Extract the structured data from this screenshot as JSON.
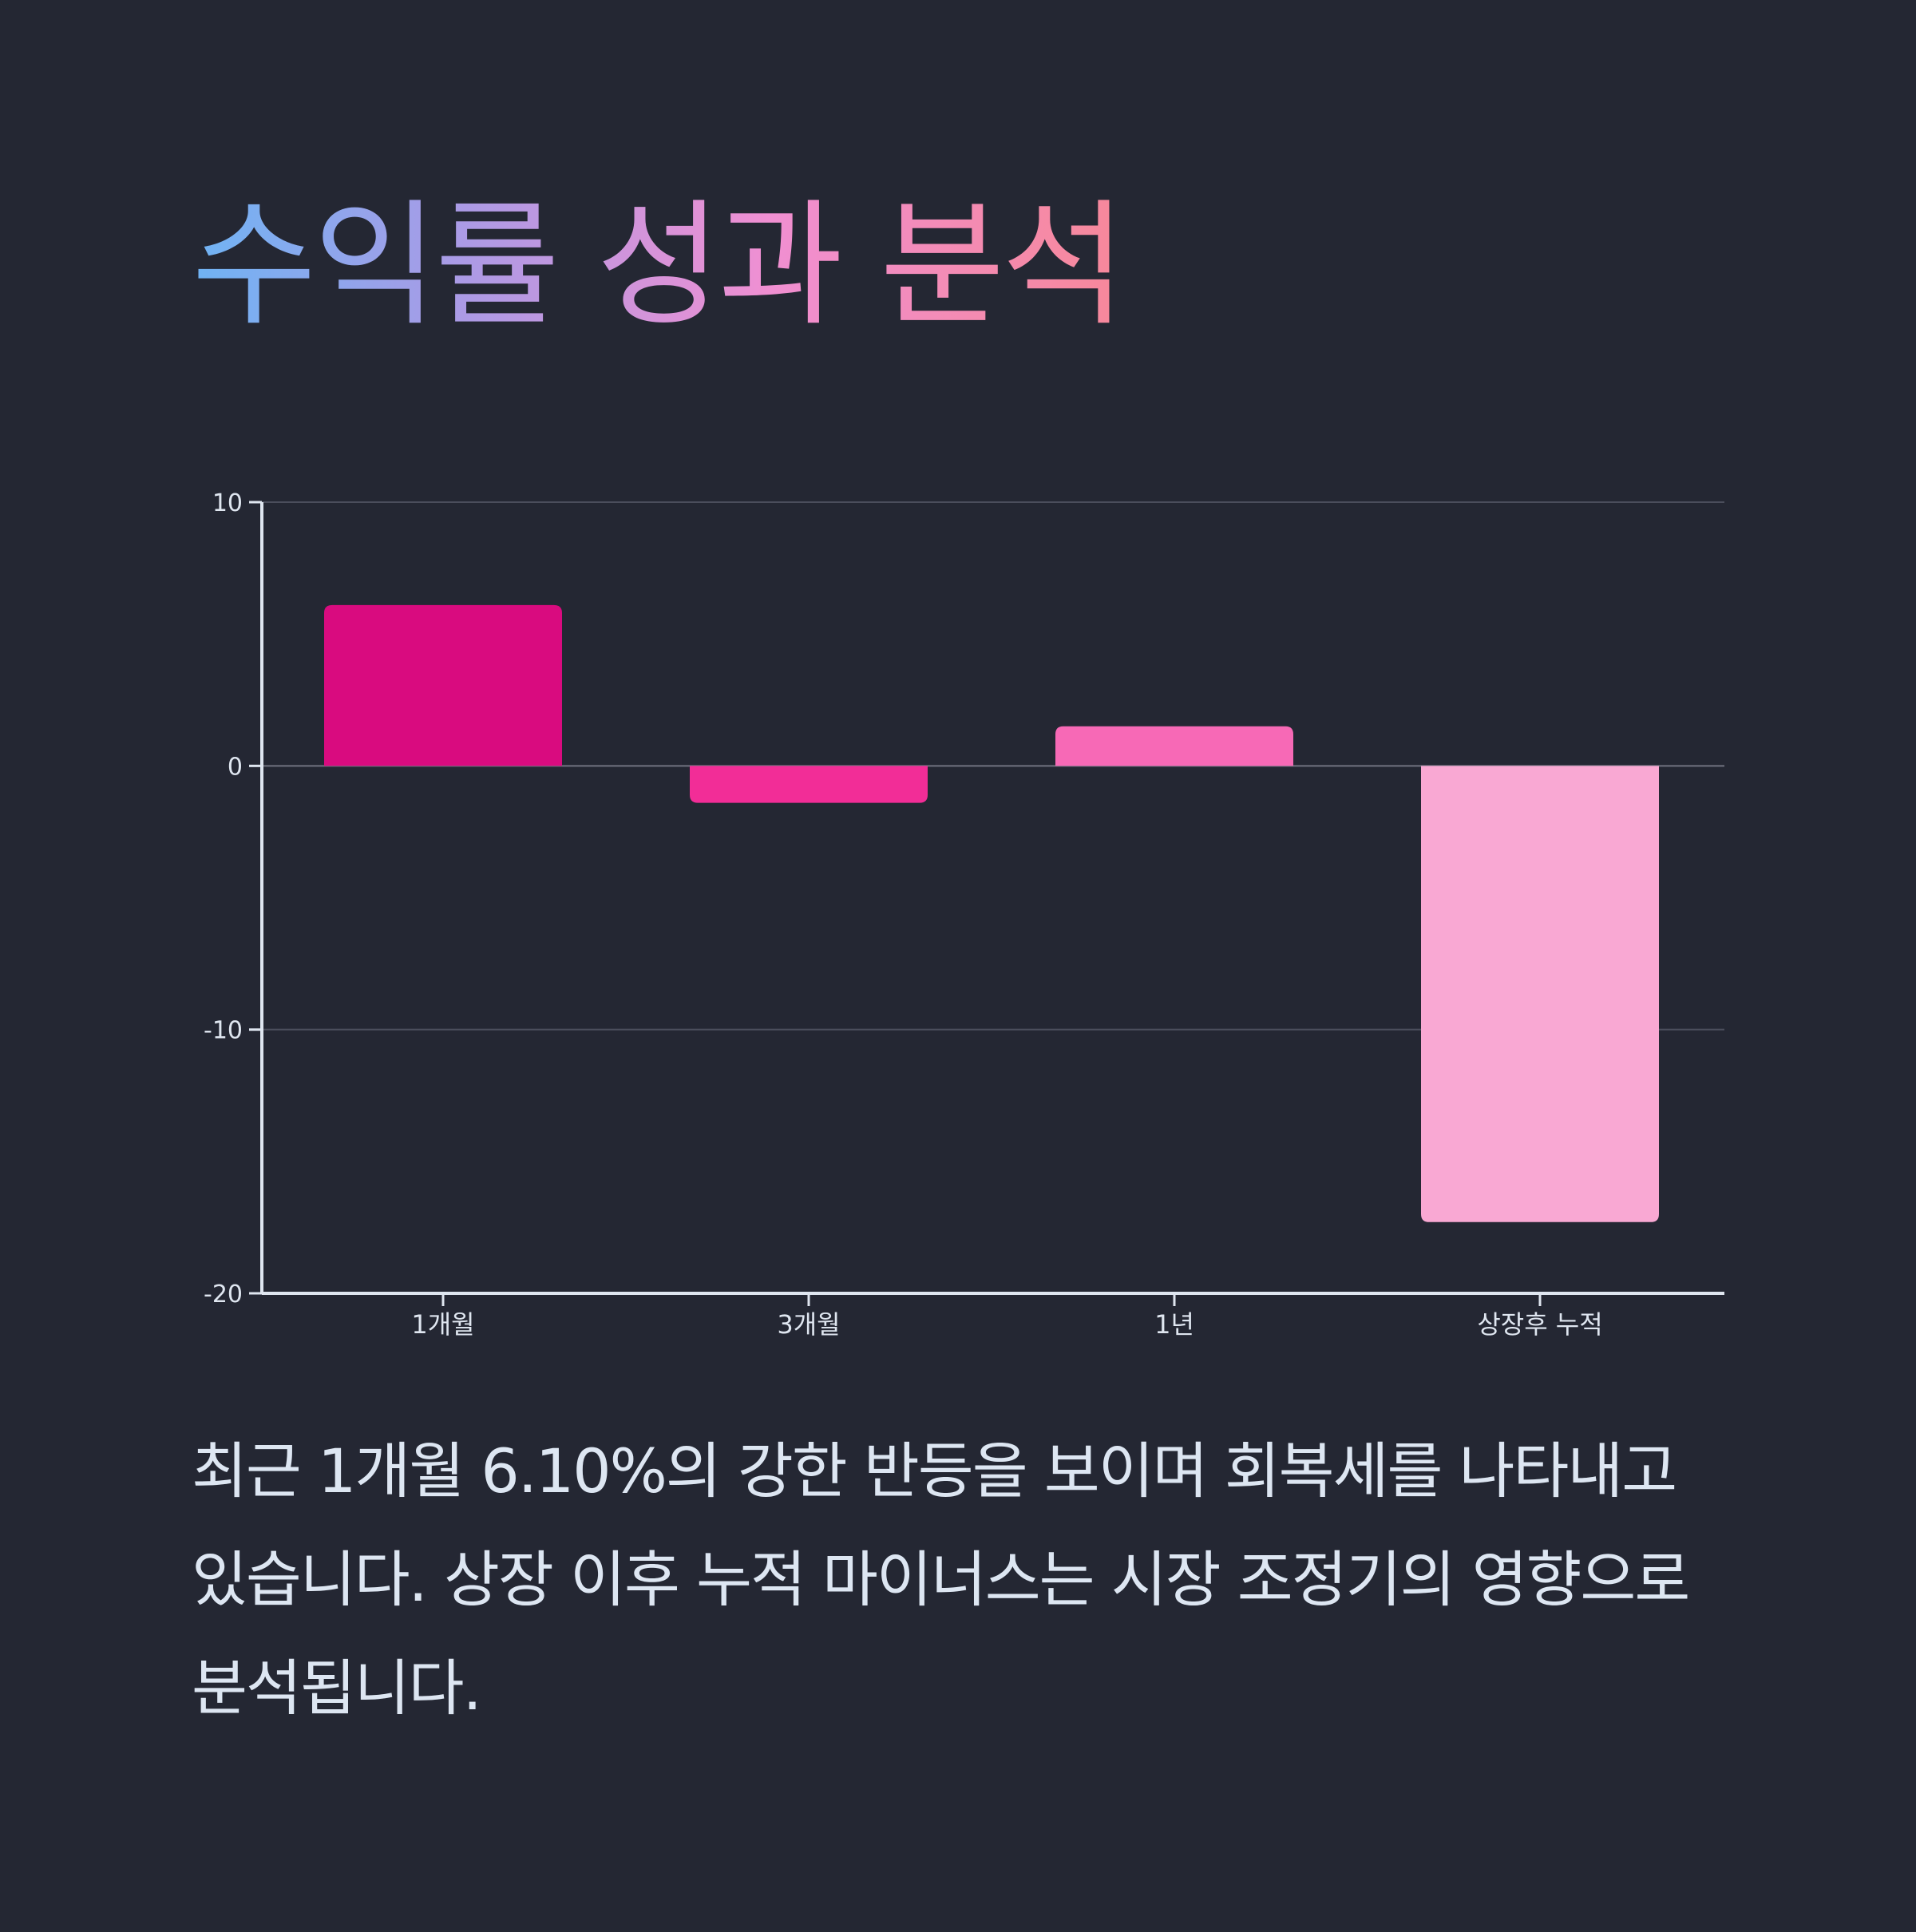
{
  "title": "수익률 성과 분석",
  "colors": {
    "background": "#242733",
    "axis": "#dfe6f0",
    "grid": "#4b4e5c",
    "tick_text": "#dfe6f0",
    "summary_text": "#dde6f2",
    "title_gradient": [
      "#6fb4f4",
      "#a99be6",
      "#f08fd2",
      "#f7889a"
    ]
  },
  "chart_data": {
    "type": "bar",
    "categories": [
      "1개월",
      "3개월",
      "1년",
      "상장후 누적"
    ],
    "values": [
      6.1,
      -1.4,
      1.5,
      -17.3
    ],
    "bar_colors": [
      "#d90b7f",
      "#f22d97",
      "#f769b6",
      "#f9a8d3"
    ],
    "ylim": [
      -20,
      10
    ],
    "yticks": [
      10,
      0,
      -10,
      -20
    ],
    "grid": true,
    "xlabel": "",
    "ylabel": ""
  },
  "summary": "최근 1개월 6.10%의 강한 반등을 보이며 회복세를 나타내고 있습니다. 상장 이후 누적 마이너스는 시장 조정기의 영향으로 분석됩니다."
}
